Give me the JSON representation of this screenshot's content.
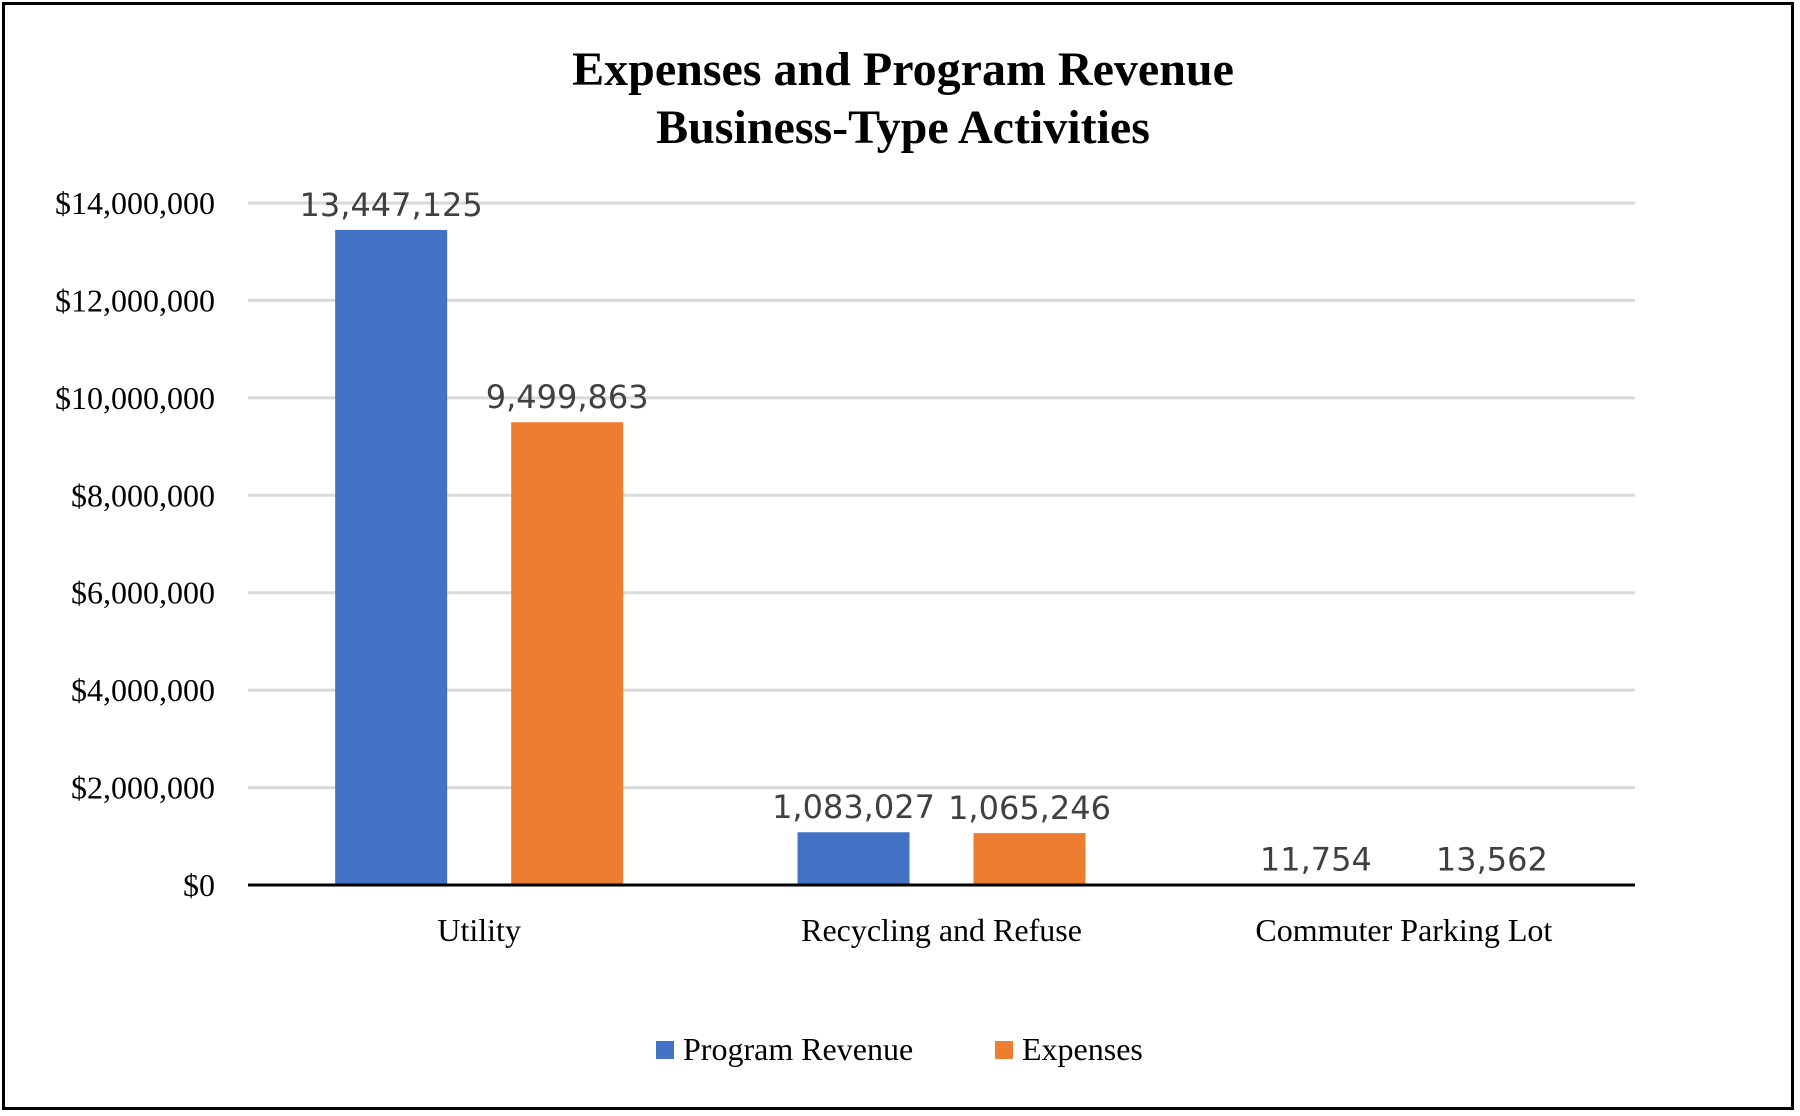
{
  "chart_data": {
    "type": "bar",
    "title": "Expenses and Program Revenue",
    "subtitle": "Business-Type Activities",
    "categories": [
      "Utility",
      "Recycling and Refuse",
      "Commuter Parking Lot"
    ],
    "series": [
      {
        "name": "Program Revenue",
        "color": "#4472C4",
        "values": [
          13447125,
          1083027,
          11754
        ],
        "labels": [
          "13,447,125",
          "1,083,027",
          "11,754"
        ]
      },
      {
        "name": "Expenses",
        "color": "#ED7D31",
        "values": [
          9499863,
          1065246,
          13562
        ],
        "labels": [
          "9,499,863",
          "1,065,246",
          "13,562"
        ]
      }
    ],
    "ylim": [
      0,
      14000000
    ],
    "yticks": [
      0,
      2000000,
      4000000,
      6000000,
      8000000,
      10000000,
      12000000,
      14000000
    ],
    "ytick_labels": [
      "$0",
      "$2,000,000",
      "$4,000,000",
      "$6,000,000",
      "$8,000,000",
      "$10,000,000",
      "$12,000,000",
      "$14,000,000"
    ],
    "xlabel": "",
    "ylabel": "",
    "grid": true,
    "legend_position": "bottom"
  }
}
